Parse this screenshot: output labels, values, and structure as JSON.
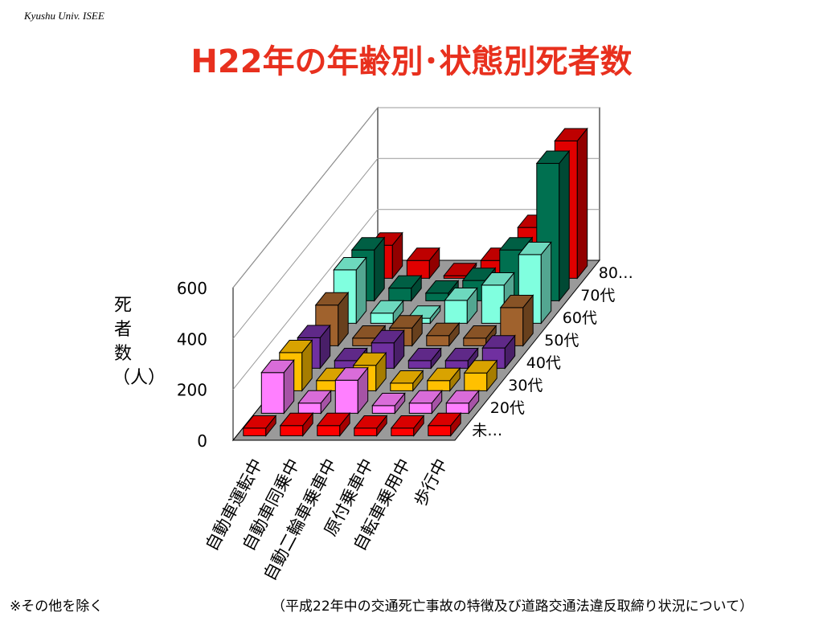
{
  "header": {
    "institution": "Kyushu Univ. ISEE",
    "title": "H22年の年齢別･状態別死者数"
  },
  "footnotes": {
    "left": "※その他を除く",
    "right": "（平成22年中の交通死亡事故の特徴及び道路交通法違反取締り状況について）"
  },
  "chart_data": {
    "type": "bar",
    "subtype": "3d-column",
    "title": "H22年の年齢別･状態別死者数",
    "ylabel": "死者数（人）",
    "ylim": [
      0,
      600
    ],
    "yticks": [
      0,
      200,
      400,
      600
    ],
    "grid": true,
    "categories": [
      "自動車運転中",
      "自動車同乗中",
      "自動二輪車乗車中",
      "原付乗車中",
      "自転車乗用中",
      "歩行中"
    ],
    "series": [
      {
        "name": "未…",
        "color": "#ff0000",
        "values": [
          30,
          40,
          40,
          30,
          30,
          40
        ]
      },
      {
        "name": "20代",
        "color": "#ff7fff",
        "values": [
          160,
          40,
          130,
          30,
          40,
          40
        ]
      },
      {
        "name": "30代",
        "color": "#ffc000",
        "values": [
          150,
          40,
          100,
          30,
          40,
          70
        ]
      },
      {
        "name": "40代",
        "color": "#7030a0",
        "values": [
          120,
          30,
          100,
          30,
          30,
          80
        ]
      },
      {
        "name": "50代",
        "color": "#a0622d",
        "values": [
          160,
          30,
          70,
          40,
          30,
          150
        ]
      },
      {
        "name": "60代",
        "color": "#80ffdf",
        "values": [
          210,
          40,
          20,
          90,
          150,
          270
        ]
      },
      {
        "name": "70代",
        "color": "#007050",
        "values": [
          200,
          50,
          30,
          80,
          200,
          540
        ]
      },
      {
        "name": "80…",
        "color": "#e00000",
        "values": [
          130,
          70,
          10,
          70,
          200,
          540
        ]
      }
    ]
  }
}
